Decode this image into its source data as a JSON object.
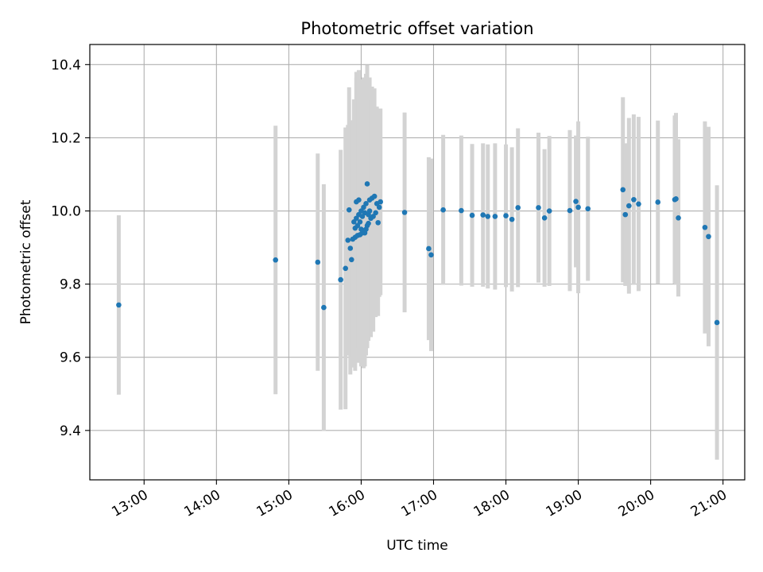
{
  "chart_data": {
    "type": "scatter",
    "title": "Photometric offset variation",
    "xlabel": "UTC time",
    "ylabel": "Photometric offset",
    "xlim": [
      "12:15",
      "21:18"
    ],
    "ylim": [
      9.265,
      10.455
    ],
    "x_ticks": [
      "13:00",
      "14:00",
      "15:00",
      "16:00",
      "17:00",
      "18:00",
      "19:00",
      "20:00",
      "21:00"
    ],
    "y_ticks": [
      9.4,
      9.6,
      9.8,
      10.0,
      10.2,
      10.4
    ],
    "y_tick_labels": [
      "9.4",
      "9.6",
      "9.8",
      "10.0",
      "10.2",
      "10.4"
    ],
    "grid": true,
    "colors": {
      "points": "#1f77b4",
      "errorbars": "#d3d3d3",
      "grid": "#b0b0b0"
    },
    "series": [
      {
        "x": [
          "12:39",
          "14:49",
          "15:24",
          "15:29",
          "15:43",
          "15:47",
          "15:49",
          "15:50",
          "15:51",
          "15:52",
          "15:53",
          "15:54",
          "15:55",
          "15:55",
          "15:56",
          "15:56",
          "15:57",
          "15:57",
          "15:58",
          "15:58",
          "15:59",
          "15:59",
          "16:00",
          "16:00",
          "16:01",
          "16:01",
          "16:02",
          "16:02",
          "16:03",
          "16:03",
          "16:04",
          "16:04",
          "16:05",
          "16:05",
          "16:06",
          "16:06",
          "16:07",
          "16:07",
          "16:08",
          "16:09",
          "16:10",
          "16:11",
          "16:12",
          "16:13",
          "16:14",
          "16:15",
          "16:16",
          "16:36",
          "16:56",
          "16:58",
          "17:08",
          "17:23",
          "17:32",
          "17:41",
          "17:45",
          "17:51",
          "18:00",
          "18:05",
          "18:10",
          "18:27",
          "18:32",
          "18:36",
          "18:53",
          "18:58",
          "19:00",
          "19:08",
          "19:37",
          "19:39",
          "19:42",
          "19:46",
          "19:50",
          "20:06",
          "20:20",
          "20:21",
          "20:23",
          "20:45",
          "20:48",
          "20:55"
        ],
        "y": [
          9.743,
          9.866,
          9.86,
          9.736,
          9.812,
          9.843,
          9.92,
          10.003,
          9.898,
          9.867,
          9.923,
          9.97,
          9.928,
          9.953,
          9.98,
          10.025,
          9.933,
          9.96,
          9.99,
          10.03,
          9.935,
          9.97,
          9.95,
          10.0,
          9.94,
          9.985,
          9.945,
          10.01,
          9.94,
          9.995,
          9.95,
          10.02,
          9.96,
          10.074,
          9.966,
          9.99,
          10.03,
          10.0,
          9.98,
          10.035,
          9.985,
          10.04,
          9.995,
          10.02,
          9.968,
          10.01,
          10.025,
          9.996,
          9.897,
          9.88,
          10.003,
          10.001,
          9.988,
          9.989,
          9.985,
          9.985,
          9.987,
          9.977,
          10.009,
          10.009,
          9.981,
          10.0,
          10.001,
          10.026,
          10.01,
          10.006,
          10.058,
          9.99,
          10.014,
          10.031,
          10.019,
          10.024,
          10.031,
          10.033,
          9.981,
          9.955,
          9.93,
          9.695
        ],
        "err": [
          0.245,
          0.367,
          0.297,
          0.337,
          0.355,
          0.385,
          0.315,
          0.335,
          0.345,
          0.295,
          0.325,
          0.335,
          0.365,
          0.305,
          0.385,
          0.355,
          0.335,
          0.375,
          0.365,
          0.355,
          0.335,
          0.385,
          0.375,
          0.36,
          0.335,
          0.345,
          0.375,
          0.355,
          0.365,
          0.335,
          0.345,
          0.355,
          0.335,
          0.325,
          0.315,
          0.345,
          0.335,
          0.305,
          0.325,
          0.305,
          0.315,
          0.295,
          0.285,
          0.265,
          0.255,
          0.245,
          0.255,
          0.273,
          0.25,
          0.263,
          0.205,
          0.205,
          0.195,
          0.196,
          0.197,
          0.2,
          0.195,
          0.197,
          0.217,
          0.205,
          0.188,
          0.205,
          0.22,
          0.18,
          0.235,
          0.197,
          0.253,
          0.195,
          0.24,
          0.233,
          0.238,
          0.223,
          0.23,
          0.235,
          0.215,
          0.29,
          0.3,
          0.375
        ]
      }
    ]
  }
}
